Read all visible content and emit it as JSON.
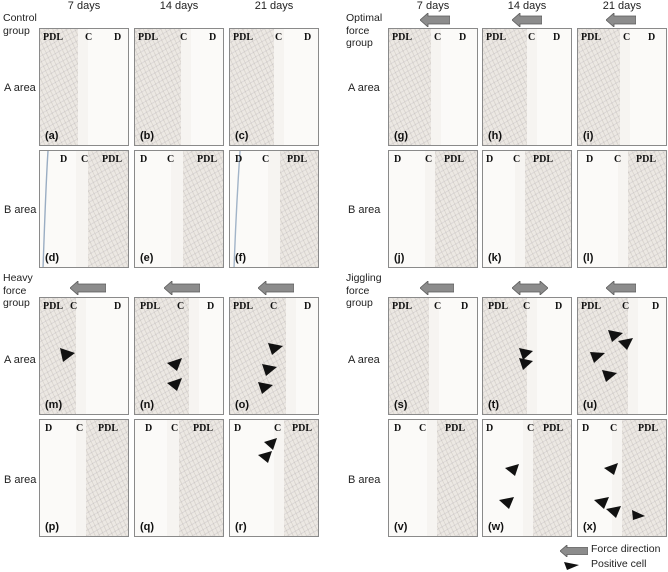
{
  "days": [
    "7 days",
    "14 days",
    "21 days"
  ],
  "groups": {
    "control": "Control\ngroup",
    "optimal": "Optimal\nforce\ngroup",
    "heavy": "Heavy\nforce\ngroup",
    "jiggling": "Jiggling\nforce\ngroup"
  },
  "areas": {
    "a": "A area",
    "b": "B area"
  },
  "tissue": {
    "pdl": "PDL",
    "c": "C",
    "d": "D"
  },
  "panels": {
    "a": "(a)",
    "b": "(b)",
    "c": "(c)",
    "d": "(d)",
    "e": "(e)",
    "f": "(f)",
    "g": "(g)",
    "h": "(h)",
    "i": "(i)",
    "j": "(j)",
    "k": "(k)",
    "l": "(l)",
    "m": "(m)",
    "n": "(n)",
    "o": "(o)",
    "p": "(p)",
    "q": "(q)",
    "r": "(r)",
    "s": "(s)",
    "t": "(t)",
    "u": "(u)",
    "v": "(v)",
    "w": "(w)",
    "x": "(x)"
  },
  "legend": {
    "force": "Force direction",
    "positive": "Positive cell"
  },
  "colors": {
    "arrow_fill": "#8c8c8c",
    "arrowhead": "#111111",
    "frame": "#8a8a8a"
  }
}
